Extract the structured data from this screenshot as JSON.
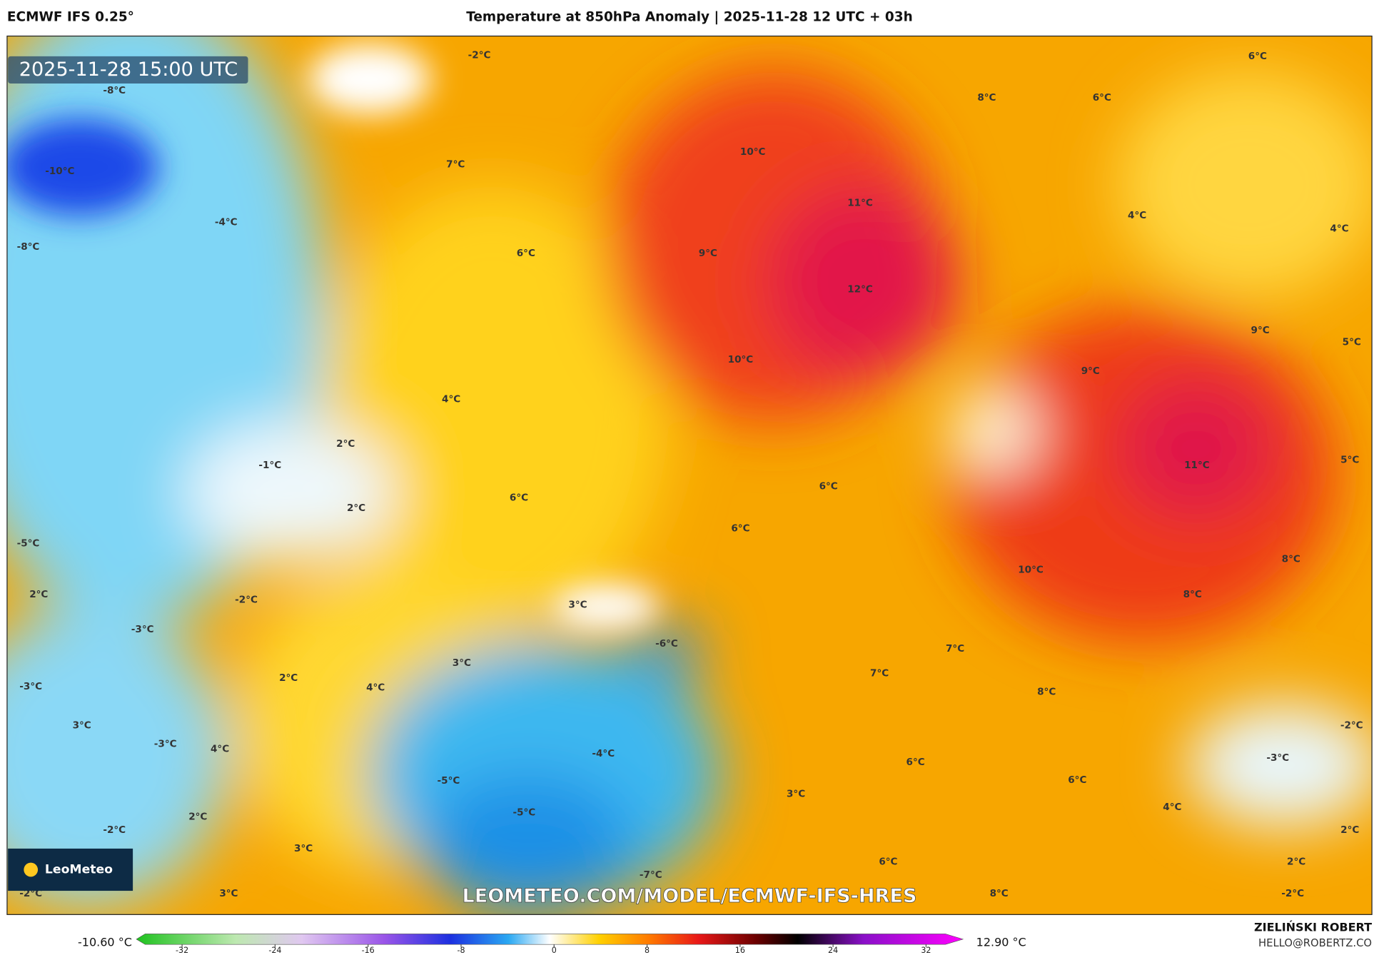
{
  "header": {
    "model": "ECMWF IFS 0.25°",
    "title": "Temperature at 850hPa Anomaly | 2025-11-28 12 UTC + 03h"
  },
  "map": {
    "timestamp": "2025-11-28 15:00 UTC",
    "watermark": "LEOMETEO.COM/MODEL/ECMWF-IFS-HRES",
    "logo": "LeoMeteo",
    "labels": [
      "-2°C",
      "-8°C",
      "-10°C",
      "7°C",
      "10°C",
      "8°C",
      "6°C",
      "6°C",
      "-4°C",
      "-8°C",
      "6°C",
      "9°C",
      "11°C",
      "4°C",
      "4°C",
      "12°C",
      "10°C",
      "9°C",
      "5°C",
      "9°C",
      "4°C",
      "2°C",
      "-1°C",
      "11°C",
      "5°C",
      "2°C",
      "6°C",
      "6°C",
      "6°C",
      "-5°C",
      "8°C",
      "10°C",
      "2°C",
      "-2°C",
      "3°C",
      "8°C",
      "-3°C",
      "-6°C",
      "7°C",
      "3°C",
      "7°C",
      "2°C",
      "4°C",
      "-3°C",
      "8°C",
      "3°C",
      "-3°C",
      "4°C",
      "-2°C",
      "-4°C",
      "6°C",
      "-3°C",
      "6°C",
      "-5°C",
      "3°C",
      "4°C",
      "-5°C",
      "-2°C",
      "2°C",
      "2°C",
      "3°C",
      "6°C",
      "2°C",
      "-7°C",
      "-2°C",
      "3°C",
      "8°C",
      "-2°C"
    ]
  },
  "colorbar": {
    "min_label": "-10.60 °C",
    "max_label": "12.90 °C",
    "ticks": [
      -32,
      -24,
      -16,
      -8,
      0,
      8,
      16,
      24,
      32
    ]
  },
  "credits": {
    "author": "ZIELIŃSKI ROBERT",
    "email": "HELLO@ROBERTZ.CO"
  }
}
